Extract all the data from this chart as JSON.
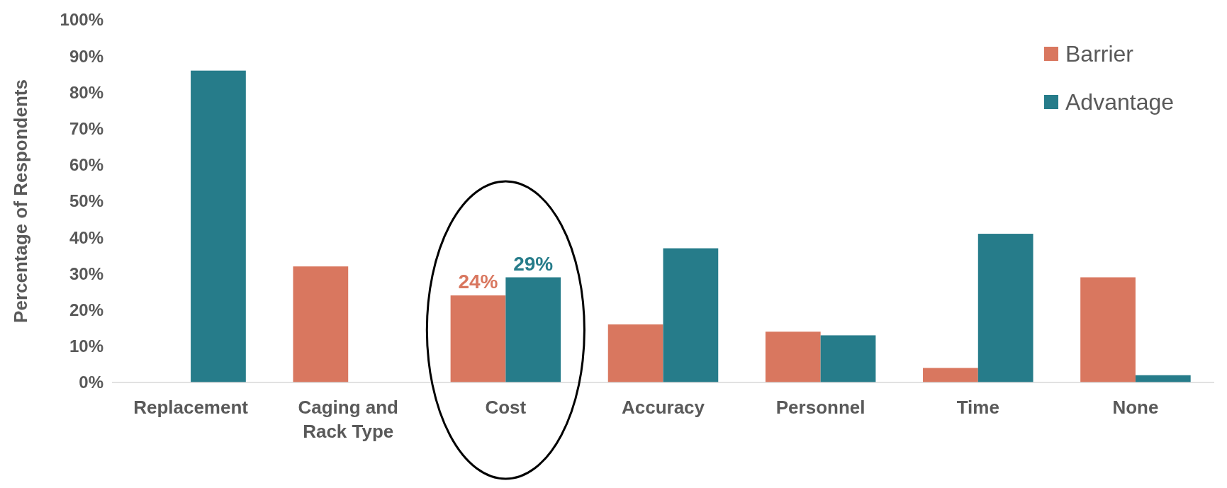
{
  "chart_data": {
    "type": "bar",
    "ylabel": "Percentage of Respondents",
    "categories": [
      "Replacement",
      "Caging and Rack Type",
      "Cost",
      "Accuracy",
      "Personnel",
      "Time",
      "None"
    ],
    "series": [
      {
        "name": "Barrier",
        "color": "#d9775f",
        "values": [
          0,
          32,
          24,
          16,
          14,
          4,
          29
        ],
        "value_labels": [
          null,
          null,
          "24%",
          null,
          null,
          null,
          null
        ]
      },
      {
        "name": "Advantage",
        "color": "#267c8a",
        "values": [
          86,
          0,
          29,
          37,
          13,
          41,
          2
        ],
        "value_labels": [
          null,
          null,
          "29%",
          null,
          null,
          null,
          null
        ]
      }
    ],
    "ylim": [
      0,
      100
    ],
    "yticks": [
      {
        "value": 0,
        "label": "0%"
      },
      {
        "value": 10,
        "label": "10%"
      },
      {
        "value": 20,
        "label": "20%"
      },
      {
        "value": 30,
        "label": "30%"
      },
      {
        "value": 40,
        "label": "40%"
      },
      {
        "value": 50,
        "label": "50%"
      },
      {
        "value": 60,
        "label": "60%"
      },
      {
        "value": 70,
        "label": "70%"
      },
      {
        "value": 80,
        "label": "80%"
      },
      {
        "value": 90,
        "label": "90%"
      },
      {
        "value": 100,
        "label": "100%"
      }
    ],
    "legend": "top right",
    "grid": false
  }
}
